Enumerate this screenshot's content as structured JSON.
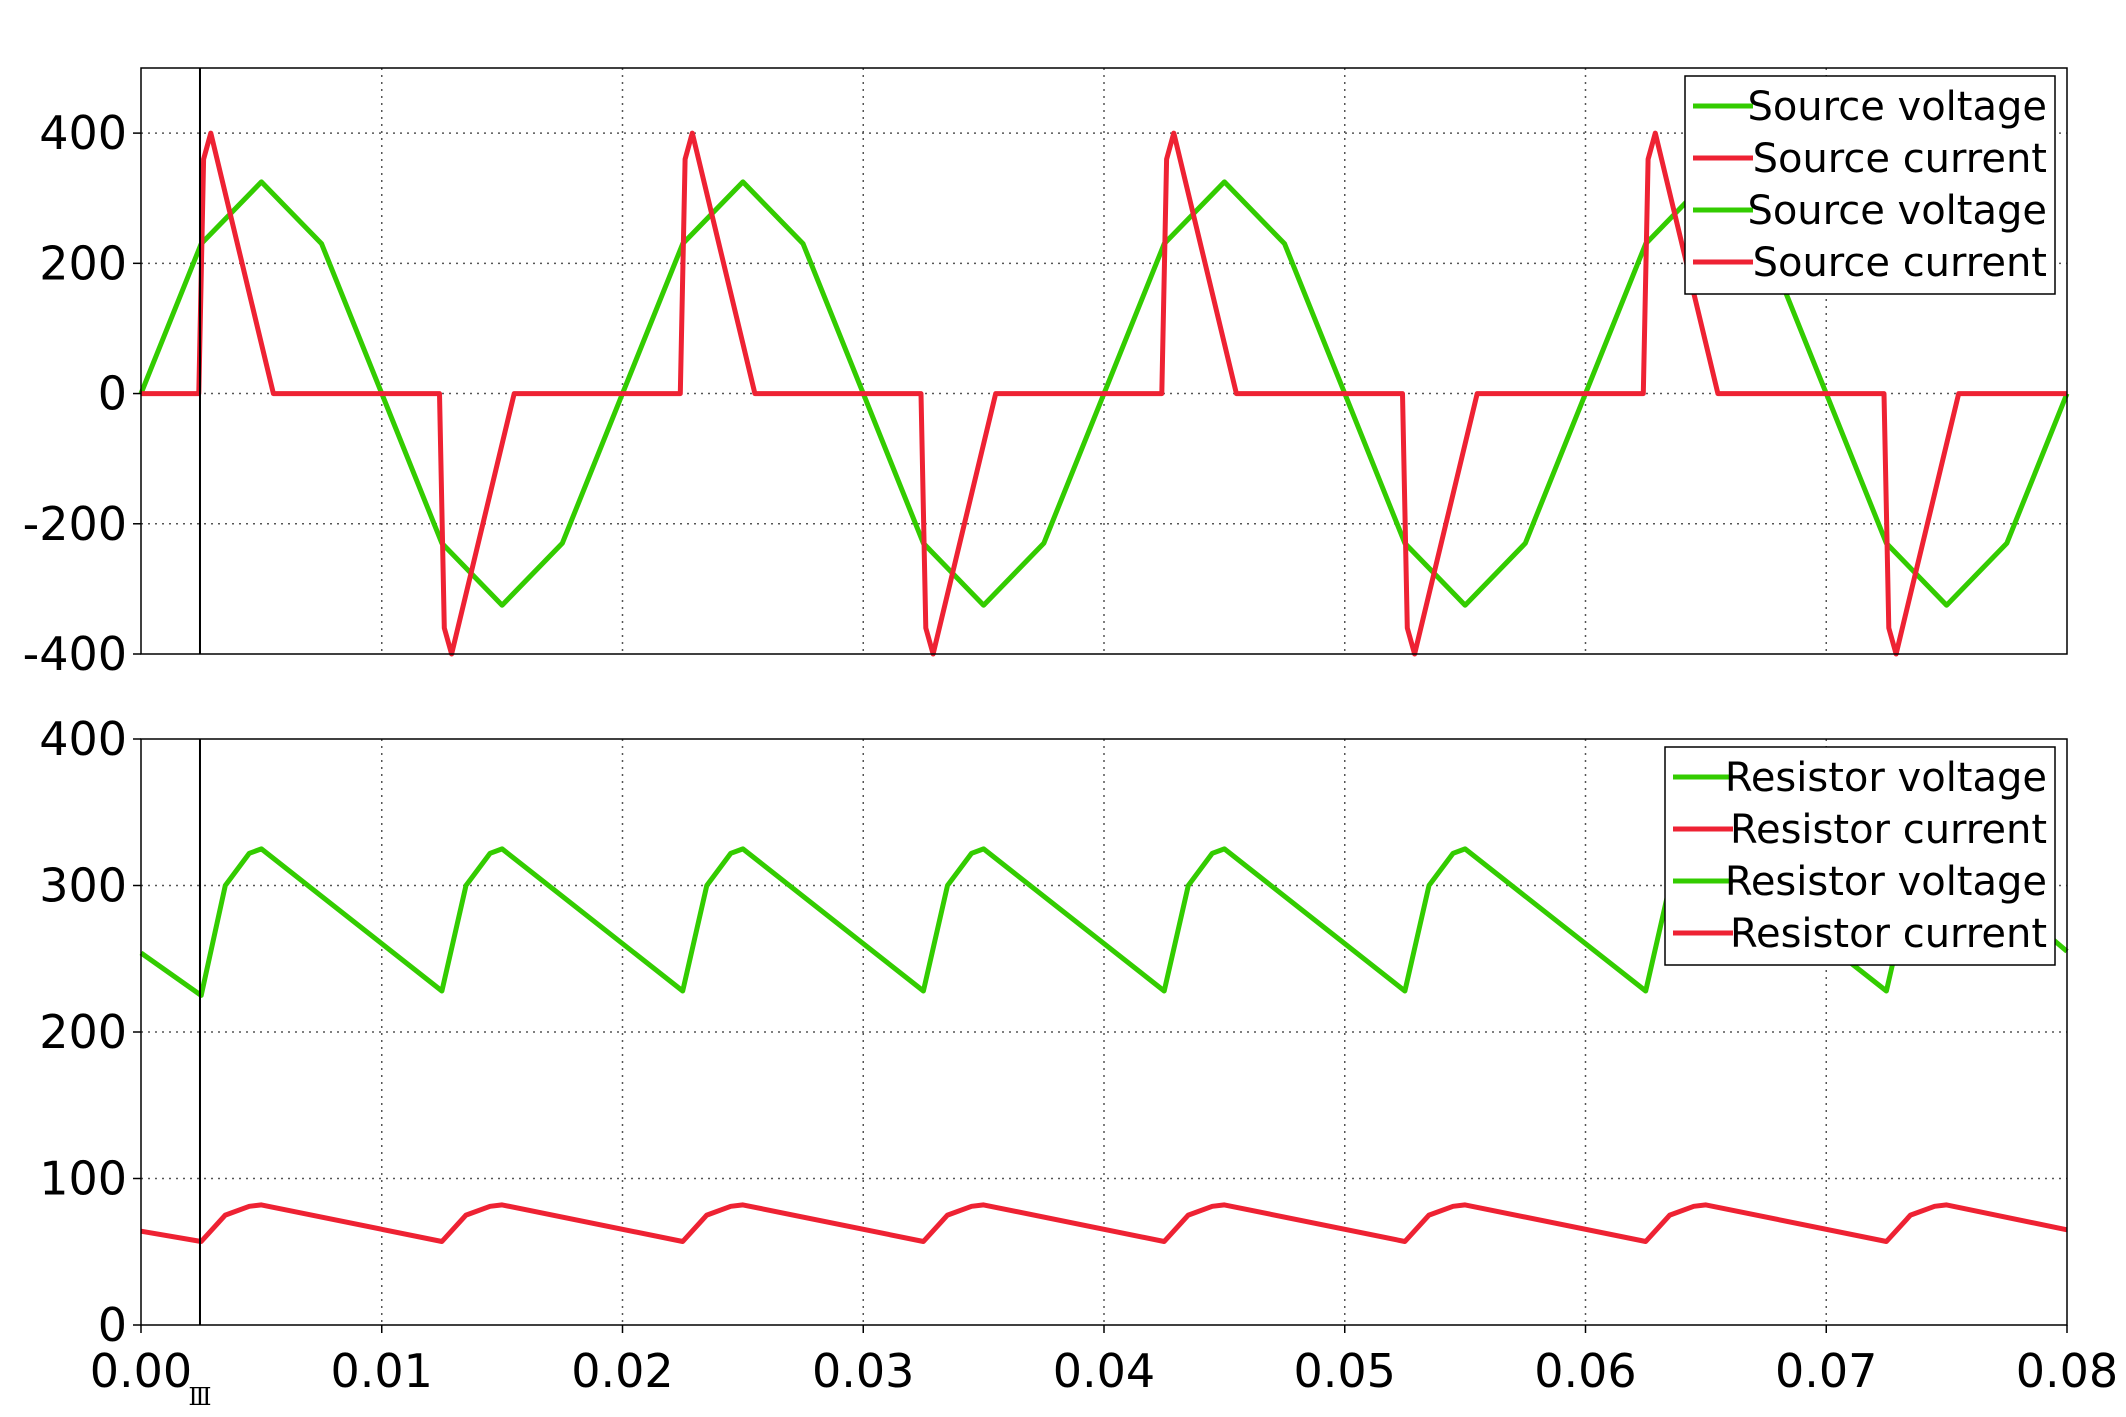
{
  "colors": {
    "voltage": "#33cc00",
    "current": "#ee2233",
    "grid": "#555555",
    "frame": "#000000"
  },
  "cursor": {
    "x": 0.00245,
    "marker": "Ⅲ"
  },
  "chart_data": [
    {
      "type": "line",
      "title": "",
      "xlabel": "",
      "ylabel": "",
      "xlim": [
        0,
        0.08
      ],
      "ylim": [
        -400,
        500
      ],
      "grid": true,
      "legend_position": "top-right",
      "xticks": [],
      "yticks": [
        "400",
        "200",
        "0",
        "-200",
        "-400"
      ],
      "ytick_values": [
        400,
        200,
        0,
        -200,
        -400
      ],
      "legend": [
        "Source voltage",
        "Source current",
        "Source voltage",
        "Source current"
      ],
      "series": [
        {
          "name": "Source voltage",
          "color": "#33cc00",
          "x": [
            0,
            0.0025,
            0.005,
            0.0075,
            0.01,
            0.0125,
            0.015,
            0.0175,
            0.02,
            0.0225,
            0.025,
            0.0275,
            0.03,
            0.0325,
            0.035,
            0.0375,
            0.04,
            0.0425,
            0.045,
            0.0475,
            0.05,
            0.0525,
            0.055,
            0.0575,
            0.06,
            0.0625,
            0.065,
            0.0675,
            0.07,
            0.0725,
            0.075,
            0.0775,
            0.08
          ],
          "y": [
            0,
            230,
            325,
            230,
            0,
            -230,
            -325,
            -230,
            0,
            230,
            325,
            230,
            0,
            -230,
            -325,
            -230,
            0,
            230,
            325,
            230,
            0,
            -230,
            -325,
            -230,
            0,
            230,
            325,
            230,
            0,
            -230,
            -325,
            -230,
            0
          ]
        },
        {
          "name": "Source current",
          "color": "#ee2233",
          "x": [
            0,
            0.0024,
            0.0026,
            0.0029,
            0.0055,
            0.0124,
            0.0126,
            0.0129,
            0.0155,
            0.0224,
            0.0226,
            0.0229,
            0.0255,
            0.0324,
            0.0326,
            0.0329,
            0.0355,
            0.0424,
            0.0426,
            0.0429,
            0.0455,
            0.0524,
            0.0526,
            0.0529,
            0.0555,
            0.0624,
            0.0626,
            0.0629,
            0.0655,
            0.0724,
            0.0726,
            0.0729,
            0.0755,
            0.08
          ],
          "y": [
            0,
            0,
            360,
            400,
            0,
            0,
            -360,
            -400,
            0,
            0,
            360,
            400,
            0,
            0,
            -360,
            -400,
            0,
            0,
            360,
            400,
            0,
            0,
            -360,
            -400,
            0,
            0,
            360,
            400,
            0,
            0,
            -360,
            -400,
            0,
            0
          ]
        }
      ]
    },
    {
      "type": "line",
      "title": "",
      "xlabel": "",
      "ylabel": "",
      "xlim": [
        0,
        0.08
      ],
      "ylim": [
        0,
        400
      ],
      "grid": true,
      "legend_position": "top-right",
      "xticks": [
        "0.00",
        "0.01",
        "0.02",
        "0.03",
        "0.04",
        "0.05",
        "0.06",
        "0.07",
        "0.08"
      ],
      "xtick_values": [
        0,
        0.01,
        0.02,
        0.03,
        0.04,
        0.05,
        0.06,
        0.07,
        0.08
      ],
      "yticks": [
        "400",
        "300",
        "200",
        "100",
        "0"
      ],
      "ytick_values": [
        400,
        300,
        200,
        100,
        0
      ],
      "legend": [
        "Resistor voltage",
        "Resistor current",
        "Resistor voltage",
        "Resistor current"
      ],
      "series": [
        {
          "name": "Resistor voltage",
          "color": "#33cc00",
          "x": [
            0,
            0.0025,
            0.0035,
            0.0045,
            0.005,
            0.0125,
            0.0135,
            0.0145,
            0.015,
            0.0225,
            0.0235,
            0.0245,
            0.025,
            0.0325,
            0.0335,
            0.0345,
            0.035,
            0.0425,
            0.0435,
            0.0445,
            0.045,
            0.0525,
            0.0535,
            0.0545,
            0.055,
            0.0625,
            0.0635,
            0.0645,
            0.065,
            0.0725,
            0.0735,
            0.0745,
            0.075,
            0.08
          ],
          "y": [
            254,
            225,
            300,
            322,
            325,
            228,
            300,
            322,
            325,
            228,
            300,
            322,
            325,
            228,
            300,
            322,
            325,
            228,
            300,
            322,
            325,
            228,
            300,
            322,
            325,
            228,
            300,
            322,
            325,
            228,
            300,
            322,
            325,
            255
          ]
        },
        {
          "name": "Resistor current",
          "color": "#ee2233",
          "x": [
            0,
            0.0025,
            0.0035,
            0.0045,
            0.005,
            0.0125,
            0.0135,
            0.0145,
            0.015,
            0.0225,
            0.0235,
            0.0245,
            0.025,
            0.0325,
            0.0335,
            0.0345,
            0.035,
            0.0425,
            0.0435,
            0.0445,
            0.045,
            0.0525,
            0.0535,
            0.0545,
            0.055,
            0.0625,
            0.0635,
            0.0645,
            0.065,
            0.0725,
            0.0735,
            0.0745,
            0.075,
            0.08
          ],
          "y": [
            64,
            57,
            75,
            81,
            82,
            57,
            75,
            81,
            82,
            57,
            75,
            81,
            82,
            57,
            75,
            81,
            82,
            57,
            75,
            81,
            82,
            57,
            75,
            81,
            82,
            57,
            75,
            81,
            82,
            57,
            75,
            81,
            82,
            65
          ]
        }
      ]
    }
  ]
}
